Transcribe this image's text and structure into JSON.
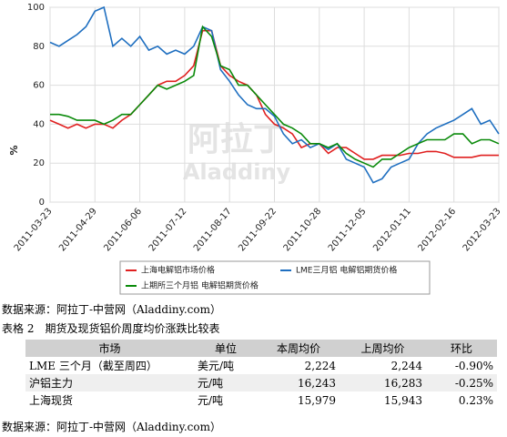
{
  "chart_data": {
    "type": "line",
    "ylabel": "%",
    "watermark": [
      "阿拉丁",
      "Aladdiny"
    ],
    "categories": [
      "2011-03-23",
      null,
      null,
      null,
      null,
      "2011-04-29",
      null,
      null,
      null,
      null,
      "2011-06-06",
      null,
      null,
      null,
      null,
      "2011-07-12",
      null,
      null,
      null,
      null,
      "2011-08-17",
      null,
      null,
      null,
      null,
      "2011-09-22",
      null,
      null,
      null,
      null,
      "2011-10-28",
      null,
      null,
      null,
      null,
      "2011-12-05",
      null,
      null,
      null,
      null,
      "2012-01-11",
      null,
      null,
      null,
      null,
      "2012-02-16",
      null,
      null,
      null,
      null,
      "2012-03-23"
    ],
    "series": [
      {
        "name": "上海电解铝市场价格",
        "color": "#e02020",
        "values": [
          42,
          40,
          38,
          40,
          38,
          40,
          40,
          38,
          42,
          45,
          50,
          55,
          60,
          62,
          62,
          65,
          70,
          88,
          88,
          70,
          65,
          62,
          60,
          55,
          45,
          40,
          38,
          35,
          28,
          30,
          30,
          25,
          28,
          28,
          25,
          22,
          22,
          24,
          24,
          24,
          25,
          25,
          26,
          26,
          25,
          23,
          23,
          23,
          24,
          24,
          24
        ]
      },
      {
        "name": "LME三月铝 电解铝期货价格",
        "color": "#1f6fc0",
        "values": [
          82,
          80,
          83,
          86,
          90,
          98,
          100,
          80,
          84,
          80,
          85,
          78,
          80,
          76,
          78,
          76,
          80,
          90,
          88,
          68,
          62,
          55,
          50,
          48,
          48,
          44,
          35,
          30,
          32,
          28,
          30,
          27,
          30,
          22,
          20,
          18,
          10,
          12,
          18,
          20,
          22,
          30,
          35,
          38,
          40,
          42,
          45,
          48,
          40,
          42,
          35
        ]
      },
      {
        "name": "上期所三个月铝 电解铝期货价格",
        "color": "#0a8a0a",
        "values": [
          45,
          45,
          44,
          42,
          42,
          42,
          40,
          42,
          45,
          45,
          50,
          55,
          60,
          58,
          60,
          62,
          65,
          90,
          85,
          70,
          68,
          60,
          60,
          55,
          50,
          45,
          40,
          38,
          35,
          30,
          30,
          28,
          30,
          25,
          22,
          20,
          18,
          22,
          22,
          25,
          28,
          30,
          32,
          32,
          32,
          35,
          35,
          30,
          32,
          32,
          30
        ]
      }
    ],
    "ylim": [
      0,
      100
    ],
    "yticks": [
      0,
      20,
      40,
      60,
      80,
      100
    ],
    "grid": true
  },
  "source1": "数据来源：阿拉丁-中营网（Aladdiny.com）",
  "table": {
    "caption": "表格 2　期货及现货铝价周度均价涨跌比较表",
    "header": [
      "市场",
      "单位",
      "本周均价",
      "上周均价",
      "环比"
    ],
    "rows": [
      [
        "LME 三个月（截至周四）",
        "美元/吨",
        "2,224",
        "2,244",
        "-0.90%"
      ],
      [
        "沪铝主力",
        "元/吨",
        "16,243",
        "16,283",
        "-0.25%"
      ],
      [
        "上海现货",
        "元/吨",
        "15,979",
        "15,943",
        "0.23%"
      ]
    ]
  },
  "source2": "数据来源：阿拉丁-中营网（Aladdiny.com）"
}
